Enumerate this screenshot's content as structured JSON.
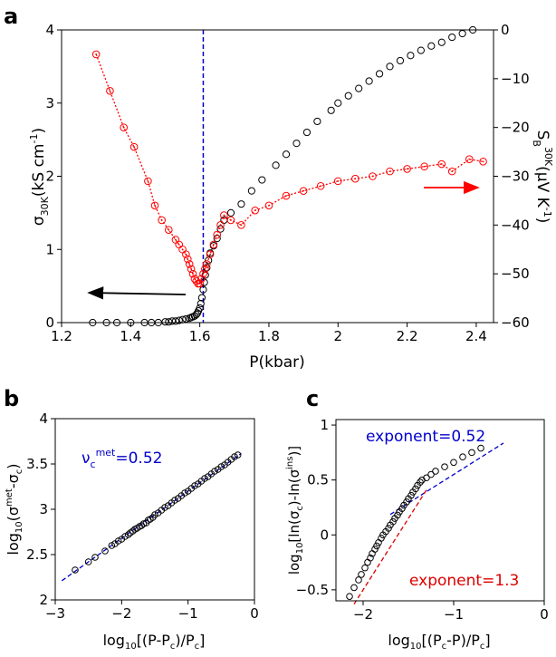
{
  "chart_data": [
    {
      "panel_label": "a",
      "type": "scatter",
      "xlabel": "P(kbar)",
      "ylabel_left": {
        "base": "σ",
        "sub": "30K",
        "rest": "(kS cm",
        "sup": "-1",
        "end": ")"
      },
      "ylabel_right": {
        "base": "S",
        "sub": "B",
        "sup": "30K",
        "rest": "(μV K",
        "sup2": "-1",
        "end": ")"
      },
      "xlim": [
        1.2,
        2.45
      ],
      "ylim_left": [
        0,
        4
      ],
      "ylim_right": [
        -60,
        0
      ],
      "xticks": [
        "1.2",
        "1.4",
        "1.6",
        "1.8",
        "2",
        "2.2",
        "2.4"
      ],
      "yticks_left": [
        "0",
        "1",
        "2",
        "3",
        "4"
      ],
      "yticks_right": [
        "−60",
        "−50",
        "−40",
        "−30",
        "−20",
        "−10",
        "0"
      ],
      "critical_pressure": 1.61,
      "colors": {
        "conductivity": "#000000",
        "thermopower": "#ff0000",
        "critical_line": "#0000cc"
      },
      "series": [
        {
          "axis": "left",
          "color": "#000000",
          "x": [
            1.29,
            1.33,
            1.36,
            1.4,
            1.44,
            1.46,
            1.48,
            1.5,
            1.51,
            1.52,
            1.53,
            1.54,
            1.55,
            1.56,
            1.57,
            1.575,
            1.58,
            1.585,
            1.59,
            1.593,
            1.596,
            1.6,
            1.603,
            1.606,
            1.61,
            1.613,
            1.616,
            1.62,
            1.625,
            1.63,
            1.64,
            1.65,
            1.66,
            1.67,
            1.69,
            1.72,
            1.75,
            1.78,
            1.82,
            1.85,
            1.88,
            1.91,
            1.94,
            1.98,
            2.0,
            2.03,
            2.06,
            2.09,
            2.12,
            2.15,
            2.18,
            2.21,
            2.24,
            2.27,
            2.3,
            2.33,
            2.36,
            2.39
          ],
          "y": [
            0.0,
            0.0,
            0.0,
            0.0,
            0.0,
            0.0,
            0.0,
            0.01,
            0.01,
            0.02,
            0.02,
            0.03,
            0.04,
            0.05,
            0.06,
            0.07,
            0.08,
            0.09,
            0.11,
            0.13,
            0.16,
            0.2,
            0.26,
            0.34,
            0.45,
            0.55,
            0.65,
            0.75,
            0.85,
            0.95,
            1.05,
            1.15,
            1.28,
            1.4,
            1.5,
            1.62,
            1.8,
            1.95,
            2.15,
            2.3,
            2.45,
            2.6,
            2.75,
            2.9,
            3.0,
            3.1,
            3.2,
            3.3,
            3.4,
            3.5,
            3.58,
            3.65,
            3.72,
            3.78,
            3.83,
            3.9,
            3.95,
            4.0
          ]
        },
        {
          "axis": "right",
          "color": "#ff0000",
          "x": [
            1.3,
            1.34,
            1.38,
            1.41,
            1.45,
            1.47,
            1.49,
            1.51,
            1.53,
            1.54,
            1.55,
            1.56,
            1.565,
            1.57,
            1.575,
            1.58,
            1.585,
            1.59,
            1.595,
            1.6,
            1.605,
            1.61,
            1.615,
            1.62,
            1.63,
            1.64,
            1.65,
            1.66,
            1.67,
            1.69,
            1.72,
            1.76,
            1.8,
            1.85,
            1.9,
            1.95,
            2.0,
            2.05,
            2.1,
            2.15,
            2.2,
            2.25,
            2.3,
            2.33,
            2.38,
            2.42
          ],
          "y": [
            -5,
            -12.5,
            -20,
            -24,
            -31,
            -36,
            -39,
            -41,
            -43,
            -44,
            -45,
            -46,
            -47,
            -48,
            -49,
            -50,
            -51,
            -51.5,
            -52,
            -52,
            -51,
            -50,
            -49,
            -48,
            -46,
            -44,
            -42,
            -40,
            -38,
            -39,
            -40,
            -37,
            -36,
            -34,
            -33,
            -32,
            -31,
            -30.5,
            -30,
            -29,
            -28.5,
            -28,
            -27.5,
            -29,
            -26.5,
            -27
          ]
        }
      ],
      "arrows": [
        {
          "direction": "left",
          "points_to_axis": "left",
          "color": "#000000"
        },
        {
          "direction": "right",
          "points_to_axis": "right",
          "color": "#ff0000"
        }
      ]
    },
    {
      "panel_label": "b",
      "type": "scatter",
      "xlabel": {
        "pre": "log",
        "sub": "10",
        "rest": "[(P-P",
        "sub2": "c",
        "mid": ")/P",
        "sub3": "c",
        "end": "]"
      },
      "ylabel": {
        "pre": "log",
        "sub": "10",
        "rest": "(σ",
        "sup": "met",
        "mid": "-σ",
        "sub2": "c",
        "end": ")"
      },
      "xlim": [
        -3,
        0
      ],
      "ylim": [
        2,
        4
      ],
      "xticks": [
        "−3",
        "−2",
        "−1",
        "0"
      ],
      "yticks": [
        "2",
        "2.5",
        "3",
        "3.5",
        "4"
      ],
      "annotation": {
        "base": "ν",
        "sub": "c",
        "sup": "met",
        "rest": "=0.52",
        "color": "#0000cc"
      },
      "fit": {
        "slope": 0.52,
        "intercept": 3.72,
        "x_range": [
          -2.9,
          -0.2
        ],
        "color": "#0000cc"
      },
      "series": [
        {
          "color": "#000000",
          "x": [
            -2.7,
            -2.5,
            -2.4,
            -2.25,
            -2.15,
            -2.1,
            -2.05,
            -2.0,
            -1.95,
            -1.9,
            -1.87,
            -1.83,
            -1.8,
            -1.77,
            -1.73,
            -1.7,
            -1.67,
            -1.63,
            -1.6,
            -1.57,
            -1.53,
            -1.5,
            -1.45,
            -1.4,
            -1.35,
            -1.3,
            -1.25,
            -1.2,
            -1.15,
            -1.1,
            -1.05,
            -1.0,
            -0.95,
            -0.9,
            -0.85,
            -0.8,
            -0.75,
            -0.7,
            -0.65,
            -0.6,
            -0.55,
            -0.5,
            -0.45,
            -0.4,
            -0.35,
            -0.3,
            -0.25
          ],
          "y": [
            2.33,
            2.42,
            2.47,
            2.54,
            2.6,
            2.62,
            2.65,
            2.67,
            2.7,
            2.72,
            2.74,
            2.76,
            2.78,
            2.79,
            2.81,
            2.82,
            2.84,
            2.85,
            2.88,
            2.89,
            2.91,
            2.94,
            2.96,
            2.99,
            3.02,
            3.04,
            3.07,
            3.1,
            3.12,
            3.15,
            3.18,
            3.2,
            3.23,
            3.26,
            3.28,
            3.31,
            3.34,
            3.36,
            3.39,
            3.42,
            3.44,
            3.47,
            3.49,
            3.52,
            3.55,
            3.58,
            3.6
          ]
        }
      ]
    },
    {
      "panel_label": "c",
      "type": "scatter",
      "xlabel": {
        "pre": "log",
        "sub": "10",
        "rest": "[(P",
        "sub2": "c",
        "mid": "-P)/P",
        "sub3": "c",
        "end": "]"
      },
      "ylabel": {
        "pre": "log",
        "sub": "10",
        "rest": "[ln(σ",
        "sub2": "c",
        "mid": ")-ln(σ",
        "sup": "ins",
        "end": ")]"
      },
      "xlim": [
        -2.3,
        0
      ],
      "ylim": [
        -0.6,
        1.05
      ],
      "xticks": [
        "−2",
        "−1",
        "0"
      ],
      "yticks": [
        "−0.5",
        "0",
        "0.5",
        "1"
      ],
      "annotations": [
        {
          "text": "exponent=0.52",
          "color": "#0000cc"
        },
        {
          "text": "exponent=1.3",
          "color": "#dd0000"
        }
      ],
      "fits": [
        {
          "slope": 0.52,
          "intercept": 1.07,
          "x_range": [
            -1.7,
            -0.45
          ],
          "color": "#0000cc"
        },
        {
          "slope": 1.3,
          "intercept": 2.1,
          "x_range": [
            -2.1,
            -1.3
          ],
          "color": "#dd0000"
        }
      ],
      "series": [
        {
          "color": "#000000",
          "x": [
            -2.15,
            -2.1,
            -2.05,
            -2.02,
            -1.98,
            -1.95,
            -1.92,
            -1.9,
            -1.87,
            -1.85,
            -1.83,
            -1.8,
            -1.78,
            -1.75,
            -1.72,
            -1.7,
            -1.67,
            -1.65,
            -1.62,
            -1.6,
            -1.57,
            -1.55,
            -1.52,
            -1.5,
            -1.47,
            -1.45,
            -1.42,
            -1.4,
            -1.37,
            -1.35,
            -1.3,
            -1.25,
            -1.2,
            -1.1,
            -1.0,
            -0.9,
            -0.8,
            -0.7
          ],
          "y": [
            -0.56,
            -0.48,
            -0.41,
            -0.36,
            -0.3,
            -0.25,
            -0.21,
            -0.17,
            -0.13,
            -0.1,
            -0.07,
            -0.03,
            0.0,
            0.03,
            0.06,
            0.09,
            0.12,
            0.15,
            0.18,
            0.21,
            0.24,
            0.27,
            0.3,
            0.33,
            0.36,
            0.39,
            0.42,
            0.45,
            0.48,
            0.5,
            0.52,
            0.55,
            0.58,
            0.62,
            0.66,
            0.71,
            0.75,
            0.79
          ]
        }
      ]
    }
  ]
}
